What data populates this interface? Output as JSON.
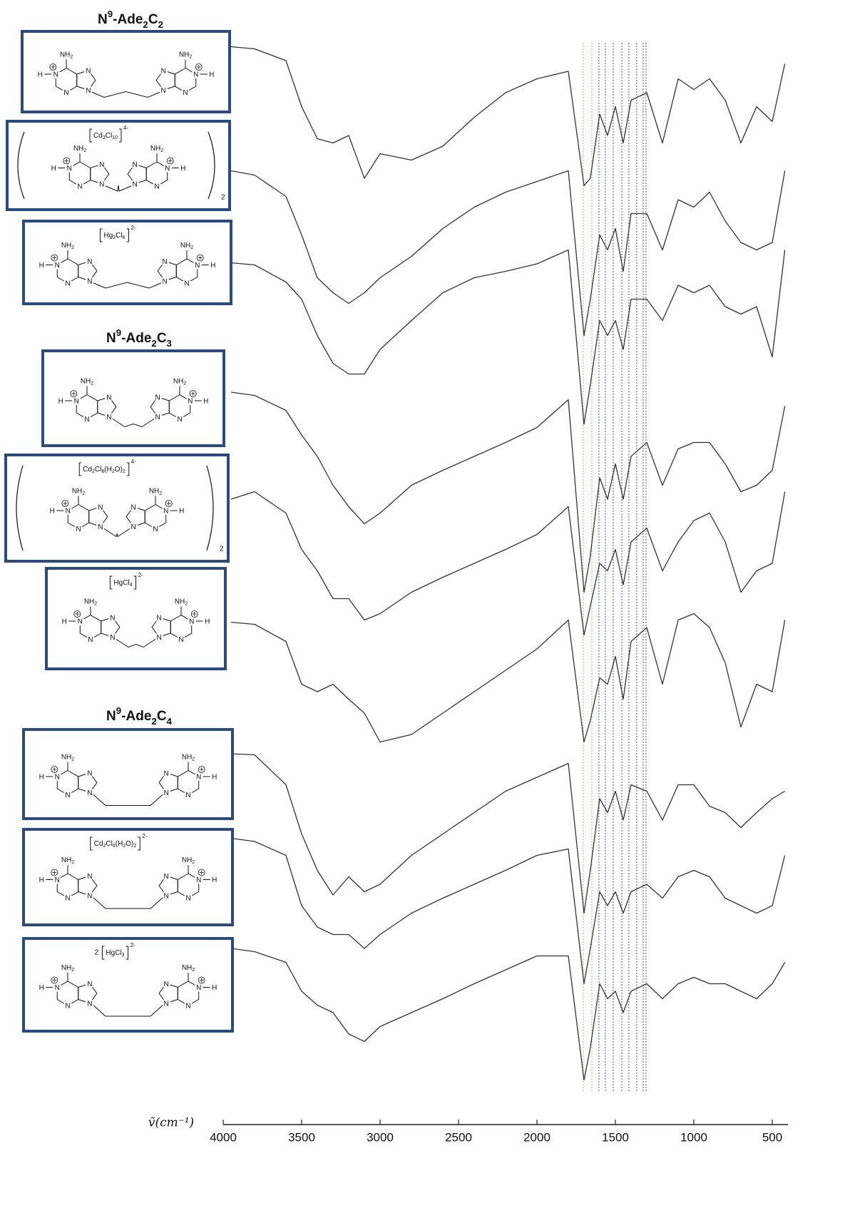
{
  "chart_data": {
    "type": "line",
    "x_label": "ṽ(cm⁻¹)",
    "xlim": [
      4000,
      400
    ],
    "xticks": [
      4000,
      3500,
      3000,
      2500,
      2000,
      1500,
      1000,
      500
    ],
    "ylim": [
      0,
      100
    ],
    "x": [
      3950,
      3800,
      3600,
      3500,
      3400,
      3300,
      3200,
      3100,
      3000,
      2800,
      2600,
      2400,
      2200,
      2000,
      1800,
      1700,
      1660,
      1600,
      1550,
      1500,
      1450,
      1400,
      1300,
      1200,
      1100,
      1000,
      900,
      800,
      700,
      600,
      500,
      420
    ],
    "series": [
      {
        "color": "#333333",
        "values": [
          98.3,
          98.1,
          97,
          92.7,
          89.7,
          89.3,
          90,
          86,
          88.3,
          87.7,
          89,
          91.7,
          94,
          95.3,
          96,
          85.3,
          86,
          92,
          90,
          92.7,
          89.3,
          93.3,
          94,
          89.3,
          95.3,
          94.3,
          95.3,
          93.3,
          89.3,
          92.7,
          91.3,
          96.7
        ]
      },
      {
        "color": "#333333",
        "values": [
          86.7,
          86.3,
          84.3,
          80.7,
          76.7,
          75.3,
          74.3,
          75.3,
          76.7,
          78.7,
          81.3,
          83.3,
          84.7,
          85.7,
          86.7,
          71.3,
          74.7,
          80.7,
          79.3,
          81.3,
          77.3,
          82.7,
          82.7,
          79.3,
          84,
          83.3,
          84.7,
          82,
          80,
          79.3,
          80,
          86.7
        ]
      },
      {
        "color": "#333333",
        "values": [
          78.1,
          77.9,
          76.3,
          74.7,
          71.3,
          68.7,
          67.7,
          67.7,
          70,
          72.7,
          75.3,
          76.7,
          77.3,
          78,
          79.3,
          63,
          66.7,
          72.7,
          71.3,
          72.7,
          70,
          74.7,
          74.7,
          72.7,
          76,
          75.3,
          76,
          74,
          73.3,
          74,
          69.3,
          79.3
        ]
      },
      {
        "color": "#333333",
        "values": [
          66,
          65.7,
          64.3,
          62,
          60,
          57.3,
          55.3,
          53.7,
          54.7,
          57.3,
          58.7,
          60,
          61.3,
          62.7,
          65.3,
          47.3,
          50.7,
          58,
          56,
          59.3,
          56,
          60,
          61.3,
          57.3,
          60.7,
          61.3,
          61.3,
          59.3,
          56.7,
          57.3,
          58.7,
          64.7
        ]
      },
      {
        "color": "#333333",
        "values": [
          56,
          56.7,
          54.7,
          51.3,
          49.3,
          46.7,
          46.7,
          44.7,
          45.3,
          47.3,
          48.7,
          50,
          51.3,
          52.7,
          55.3,
          43.3,
          46,
          50,
          49.3,
          51.3,
          48,
          52,
          53.3,
          49.3,
          52,
          54,
          54.7,
          52,
          47.3,
          49.3,
          50,
          56.7
        ]
      },
      {
        "color": "#333333",
        "values": [
          44.5,
          44.3,
          42.7,
          38.7,
          38,
          38.7,
          37.3,
          36,
          33.3,
          34,
          36,
          38,
          40,
          42,
          44.7,
          33.3,
          35.3,
          39.3,
          38.7,
          41.3,
          37.3,
          42.7,
          44,
          38.7,
          44.7,
          45.3,
          44,
          40.7,
          34.7,
          38.7,
          38,
          44.7
        ]
      },
      {
        "color": "#333333",
        "values": [
          32.2,
          32.1,
          29.3,
          24.7,
          21.3,
          19,
          20.7,
          19.3,
          20,
          22.7,
          24.7,
          26.7,
          28.7,
          30,
          31.3,
          17.3,
          21.3,
          28,
          26.7,
          28.7,
          26,
          29.3,
          28.7,
          26,
          29.3,
          29.3,
          27.3,
          26.7,
          25.3,
          26.7,
          28,
          28.7
        ]
      },
      {
        "color": "#333333",
        "values": [
          24.3,
          24,
          22.7,
          18,
          16,
          15.3,
          15.3,
          14,
          15.3,
          17.3,
          18.7,
          20,
          21.3,
          22.7,
          23.3,
          10.7,
          14,
          19.3,
          18,
          19.3,
          17.3,
          19.3,
          20,
          18.7,
          20.7,
          21.3,
          20.7,
          18.7,
          18,
          17.3,
          18,
          22.7
        ]
      },
      {
        "color": "#333333",
        "values": [
          14,
          13.7,
          12.7,
          10,
          8.7,
          8,
          6,
          5.3,
          6.7,
          8,
          9.3,
          10.7,
          12,
          13.3,
          13.3,
          1.7,
          4.7,
          10.7,
          9.3,
          10,
          8,
          10,
          10.7,
          9.3,
          10.7,
          11.3,
          10.7,
          10.7,
          10,
          9.3,
          10.7,
          12.7
        ]
      }
    ],
    "reference_lines": [
      {
        "value": 1705,
        "color": "#f0a060"
      },
      {
        "value": 1650,
        "color": "#f0a060"
      },
      {
        "value": 1605,
        "color": "#3a5a9a"
      },
      {
        "value": 1564,
        "color": "#3a5a9a"
      },
      {
        "value": 1514,
        "color": "#3a5a9a"
      },
      {
        "value": 1459,
        "color": "#3a5a9a"
      },
      {
        "value": 1414,
        "color": "#3a5a9a"
      },
      {
        "value": 1364,
        "color": "#3a5a9a"
      },
      {
        "value": 1323,
        "color": "#3a5a9a"
      },
      {
        "value": 1305,
        "color": "#3a5a9a"
      }
    ]
  },
  "structures": {
    "atoms": {
      "n": "N",
      "nh2": "NH2",
      "h": "H"
    },
    "groups": [
      {
        "heading": "N9-Ade2C2",
        "items": [
          {},
          {
            "ion": "Cd3Cl10",
            "charge": "4-",
            "sub": "2"
          },
          {
            "ion": "Hg2Cl6",
            "charge": "2-"
          }
        ]
      },
      {
        "heading": "N9-Ade2C3",
        "items": [
          {},
          {
            "ion": "Cd2Cl8(H2O)2",
            "charge": "4-",
            "sub": "2"
          },
          {
            "ion": "HgCl4",
            "charge": "2-"
          }
        ]
      },
      {
        "heading": "N9-Ade2C4",
        "items": [
          {},
          {
            "ion": "Cd2Cl6(H2O)2",
            "charge": "2-"
          },
          {
            "ion": "HgCl3",
            "charge": "2-",
            "coef": "2"
          }
        ]
      }
    ]
  }
}
